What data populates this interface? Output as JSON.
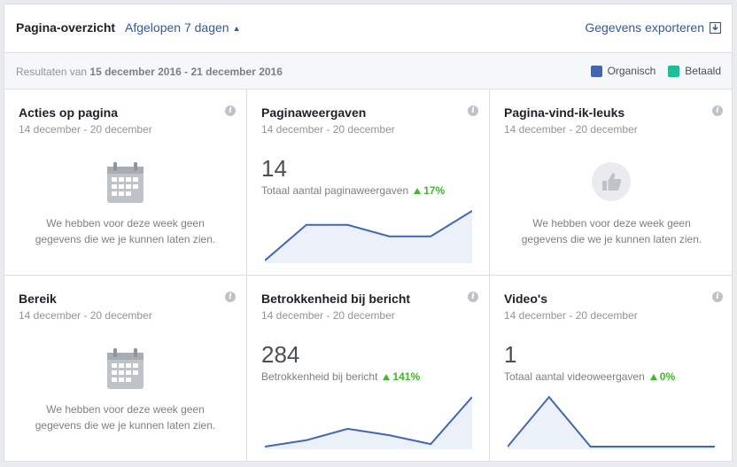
{
  "header": {
    "title": "Pagina-overzicht",
    "range": "Afgelopen 7 dagen",
    "export": "Gegevens exporteren"
  },
  "subheader": {
    "results_prefix": "Resultaten van",
    "date_range": "15 december 2016 - 21 december 2016",
    "legend": [
      {
        "label": "Organisch",
        "color": "#4267b2"
      },
      {
        "label": "Betaald",
        "color": "#1fbc9c"
      }
    ]
  },
  "cards": [
    {
      "title": "Acties op pagina",
      "date": "14 december - 20 december",
      "empty_line1": "We hebben voor deze week geen",
      "empty_line2": "gegevens die we je kunnen laten zien.",
      "icon": "calendar-icon"
    },
    {
      "title": "Paginaweergaven",
      "date": "14 december - 20 december",
      "value": "14",
      "sub": "Totaal aantal paginaweergaven",
      "change": "17%",
      "spark": [
        1,
        29,
        29,
        20,
        20,
        40
      ]
    },
    {
      "title": "Pagina-vind-ik-leuks",
      "date": "14 december - 20 december",
      "empty_line1": "We hebben voor deze week geen",
      "empty_line2": "gegevens die we je kunnen laten zien.",
      "icon": "thumbs-up-icon"
    },
    {
      "title": "Bereik",
      "date": "14 december - 20 december",
      "empty_line1": "We hebben voor deze week geen",
      "empty_line2": "gegevens die we je kunnen laten zien.",
      "icon": "calendar-icon"
    },
    {
      "title": "Betrokkenheid bij bericht",
      "date": "14 december - 20 december",
      "value": "284",
      "sub": "Betrokkenheid bij bericht",
      "change": "141%",
      "spark": [
        1,
        6,
        15,
        10,
        3,
        40
      ]
    },
    {
      "title": "Video's",
      "date": "14 december - 20 december",
      "value": "1",
      "sub": "Totaal aantal videoweergaven",
      "change": "0%",
      "spark": [
        0,
        1,
        0,
        0,
        0,
        0
      ]
    }
  ]
}
